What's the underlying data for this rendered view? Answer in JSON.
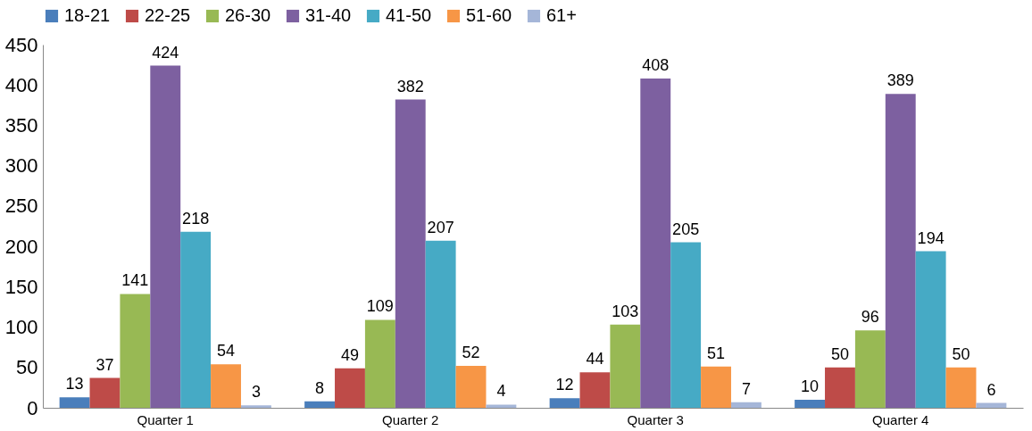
{
  "chart_data": {
    "type": "bar",
    "categories": [
      "Quarter 1",
      "Quarter 2",
      "Quarter 3",
      "Quarter 4"
    ],
    "series": [
      {
        "name": "18-21",
        "color": "#4a7ebb",
        "values": [
          13,
          8,
          12,
          10
        ]
      },
      {
        "name": "22-25",
        "color": "#be4b48",
        "values": [
          37,
          49,
          44,
          50
        ]
      },
      {
        "name": "26-30",
        "color": "#98b954",
        "values": [
          141,
          109,
          103,
          96
        ]
      },
      {
        "name": "31-40",
        "color": "#7d60a0",
        "values": [
          424,
          382,
          408,
          389
        ]
      },
      {
        "name": "41-50",
        "color": "#46aac5",
        "values": [
          218,
          207,
          205,
          194
        ]
      },
      {
        "name": "51-60",
        "color": "#f79646",
        "values": [
          54,
          52,
          51,
          50
        ]
      },
      {
        "name": "61+",
        "color": "#a5b6d8",
        "values": [
          3,
          4,
          7,
          6
        ]
      }
    ],
    "ylim": [
      0,
      450
    ],
    "yticks": [
      0,
      50,
      100,
      150,
      200,
      250,
      300,
      350,
      400,
      450
    ],
    "grid": false,
    "legend": "top",
    "data_labels": true
  }
}
